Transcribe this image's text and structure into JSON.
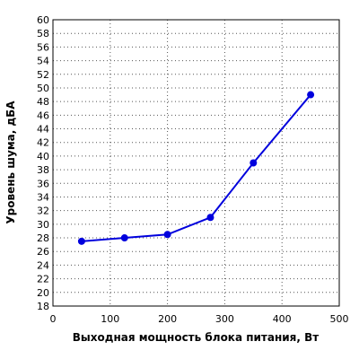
{
  "chart_data": {
    "type": "line",
    "title": "",
    "xlabel": "Выходная мощность блока питания, Вт",
    "ylabel": "Уровень шума, дБА",
    "xlim": [
      0,
      500
    ],
    "ylim": [
      18,
      60
    ],
    "xticks": [
      0,
      100,
      200,
      300,
      400,
      500
    ],
    "yticks": [
      18,
      20,
      22,
      24,
      26,
      28,
      30,
      32,
      34,
      36,
      38,
      40,
      42,
      44,
      46,
      48,
      50,
      52,
      54,
      56,
      58,
      60
    ],
    "grid": true,
    "legend": "none",
    "series": [
      {
        "color": "#0000dd",
        "x": [
          50,
          125,
          200,
          275,
          350,
          450
        ],
        "y": [
          27.5,
          28.0,
          28.5,
          31.0,
          39.0,
          49.0
        ]
      }
    ]
  }
}
